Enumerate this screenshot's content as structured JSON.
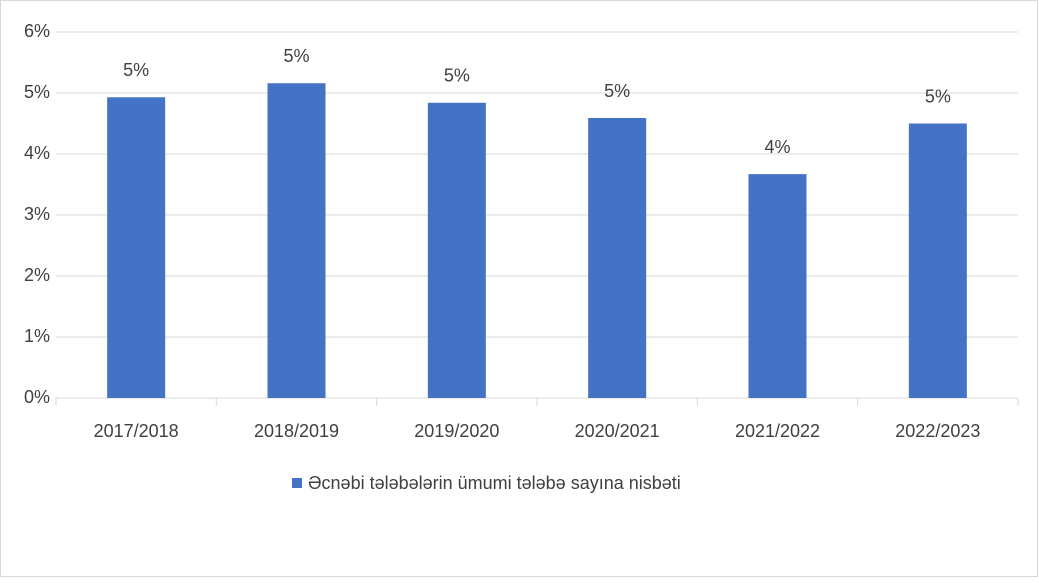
{
  "chart_data": {
    "type": "bar",
    "categories": [
      "2017/2018",
      "2018/2019",
      "2019/2020",
      "2020/2021",
      "2021/2022",
      "2022/2023"
    ],
    "series": [
      {
        "name": "Əcnəbi tələbələrin ümumi tələbə sayına nisbəti",
        "color": "#4472c4",
        "values": [
          4.93,
          5.16,
          4.84,
          4.59,
          3.67,
          4.5
        ],
        "value_labels": [
          "5%",
          "5%",
          "5%",
          "5%",
          "4%",
          "5%"
        ]
      }
    ],
    "ylim": [
      0,
      6
    ],
    "yticks": [
      {
        "value": 0,
        "label": "0%"
      },
      {
        "value": 1,
        "label": "1%"
      },
      {
        "value": 2,
        "label": "2%"
      },
      {
        "value": 3,
        "label": "3%"
      },
      {
        "value": 4,
        "label": "4%"
      },
      {
        "value": 5,
        "label": "5%"
      },
      {
        "value": 6,
        "label": "6%"
      }
    ],
    "grid": true,
    "legend": "bottom"
  }
}
